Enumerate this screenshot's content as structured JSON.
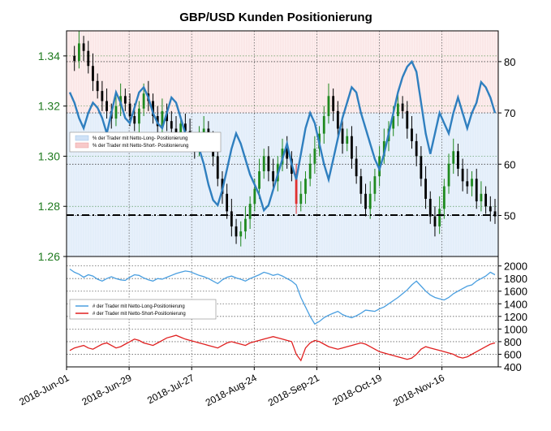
{
  "title": "GBP/USD Kunden Positionierung",
  "colors": {
    "price_up": "#1f8a1f",
    "price_down": "#000000",
    "price_highlight": "#e03030",
    "long_pct_line": "#2f7fbf",
    "long_count_line": "#4a9fe0",
    "short_count_line": "#e02020",
    "long_band": "#e8f1fb",
    "short_band": "#fdeeee",
    "axis_green": "#1f7a1f"
  },
  "chart_data": [
    {
      "type": "line",
      "panel": "top",
      "x_ticks": [
        "2018-Jun-01",
        "2018-Jun-29",
        "2018-Jul-27",
        "2018-Aug-24",
        "2018-Sep-21",
        "2018-Oct-19",
        "2018-Nov-16"
      ],
      "left_axis": {
        "ticks": [
          "1.34",
          "1.32",
          "1.30",
          "1.28",
          "1.26"
        ],
        "ylim": [
          1.26,
          1.35
        ]
      },
      "right_axis": {
        "ticks": [
          "80",
          "70",
          "60",
          "50"
        ],
        "ylim": [
          42,
          86
        ]
      },
      "legend": {
        "position": "left",
        "entries": [
          "% der Trader mit Netto-Long- Positionierung",
          "% der Trader mit Netto-Short- Positionierung"
        ]
      },
      "reference_line": 1.2765,
      "price": [
        1.34,
        1.338,
        1.345,
        1.342,
        1.336,
        1.33,
        1.326,
        1.322,
        1.318,
        1.315,
        1.32,
        1.324,
        1.321,
        1.316,
        1.313,
        1.319,
        1.325,
        1.322,
        1.316,
        1.312,
        1.318,
        1.314,
        1.311,
        1.308,
        1.313,
        1.31,
        1.306,
        1.303,
        1.308,
        1.311,
        1.306,
        1.3,
        1.291,
        1.285,
        1.278,
        1.272,
        1.268,
        1.27,
        1.275,
        1.281,
        1.287,
        1.294,
        1.3,
        1.294,
        1.29,
        1.297,
        1.303,
        1.299,
        1.293,
        1.281,
        1.285,
        1.291,
        1.297,
        1.303,
        1.309,
        1.316,
        1.324,
        1.318,
        1.311,
        1.305,
        1.308,
        1.299,
        1.292,
        1.285,
        1.279,
        1.285,
        1.292,
        1.3,
        1.306,
        1.311,
        1.316,
        1.321,
        1.318,
        1.311,
        1.306,
        1.3,
        1.291,
        1.283,
        1.276,
        1.272,
        1.279,
        1.288,
        1.297,
        1.302,
        1.295,
        1.29,
        1.288,
        1.291,
        1.282,
        1.285,
        1.28,
        1.278,
        1.276
      ],
      "long_pct": [
        74,
        72,
        69,
        67,
        70,
        72,
        71,
        69,
        66,
        70,
        74,
        72,
        69,
        68,
        71,
        74,
        75,
        73,
        70,
        68,
        67,
        70,
        73,
        72,
        69,
        66,
        64,
        65,
        63,
        60,
        56,
        53,
        52,
        55,
        59,
        63,
        66,
        64,
        61,
        58,
        56,
        54,
        51,
        52,
        55,
        58,
        61,
        64,
        60,
        57,
        62,
        67,
        70,
        68,
        64,
        60,
        57,
        61,
        65,
        69,
        72,
        75,
        74,
        70,
        67,
        64,
        61,
        59,
        62,
        66,
        70,
        74,
        77,
        79,
        80,
        78,
        72,
        66,
        62,
        66,
        70,
        68,
        66,
        70,
        73,
        70,
        67,
        70,
        72,
        76,
        75,
        73,
        70
      ]
    },
    {
      "type": "line",
      "panel": "bottom",
      "right_axis": {
        "ticks": [
          "2000",
          "1800",
          "1600",
          "1400",
          "1200",
          "1000",
          "800",
          "600",
          "400"
        ],
        "ylim": [
          400,
          2150
        ]
      },
      "legend": {
        "position": "left",
        "entries": [
          "# der Trader mit Netto-Long-Positionierung",
          "# der Trader mit Netto-Short-Positionierung"
        ]
      },
      "long_count": [
        1950,
        1900,
        1870,
        1820,
        1860,
        1840,
        1790,
        1760,
        1800,
        1830,
        1800,
        1780,
        1770,
        1820,
        1860,
        1850,
        1810,
        1780,
        1760,
        1800,
        1790,
        1820,
        1850,
        1880,
        1900,
        1920,
        1910,
        1880,
        1850,
        1830,
        1800,
        1760,
        1720,
        1780,
        1820,
        1840,
        1810,
        1790,
        1760,
        1800,
        1830,
        1860,
        1900,
        1880,
        1850,
        1870,
        1840,
        1800,
        1760,
        1700,
        1500,
        1350,
        1200,
        1080,
        1120,
        1180,
        1220,
        1250,
        1280,
        1230,
        1200,
        1180,
        1210,
        1250,
        1300,
        1290,
        1280,
        1320,
        1350,
        1400,
        1450,
        1500,
        1560,
        1620,
        1700,
        1760,
        1680,
        1600,
        1540,
        1500,
        1480,
        1460,
        1500,
        1560,
        1600,
        1640,
        1680,
        1700,
        1760,
        1800,
        1840,
        1900,
        1860
      ],
      "short_count": [
        660,
        700,
        720,
        740,
        700,
        680,
        720,
        760,
        780,
        740,
        700,
        720,
        760,
        800,
        840,
        820,
        780,
        760,
        740,
        780,
        820,
        860,
        880,
        900,
        870,
        840,
        820,
        800,
        780,
        760,
        740,
        720,
        700,
        740,
        780,
        800,
        780,
        760,
        740,
        780,
        800,
        820,
        840,
        860,
        880,
        860,
        840,
        820,
        800,
        600,
        500,
        700,
        780,
        820,
        800,
        760,
        720,
        700,
        680,
        700,
        720,
        740,
        760,
        780,
        760,
        720,
        680,
        640,
        620,
        600,
        580,
        560,
        540,
        520,
        540,
        600,
        680,
        720,
        700,
        680,
        660,
        640,
        620,
        600,
        560,
        540,
        560,
        600,
        640,
        680,
        720,
        760,
        780
      ]
    }
  ]
}
